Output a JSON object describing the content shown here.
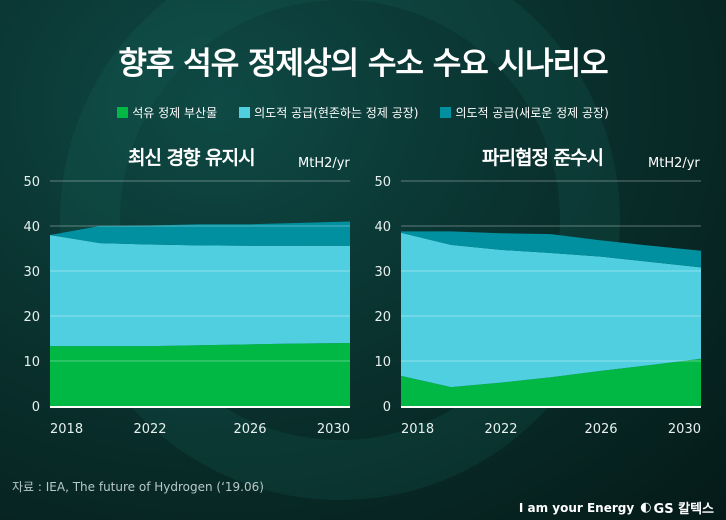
{
  "title": "향후 석유 정제상의 수소 수요 시나리오",
  "legend": [
    {
      "label": "석유 정제 부산물",
      "color": "#00b843"
    },
    {
      "label": "의도적 공급(현존하는 정제 공장)",
      "color": "#4fcfe0"
    },
    {
      "label": "의도적 공급(새로운 정제 공장)",
      "color": "#0090a0"
    }
  ],
  "source": "자료 : IEA, The future of Hydrogen (‘19.06)",
  "brand": {
    "slogan": "I am your Energy",
    "logo": "GS 칼텍스"
  },
  "chart_data": [
    {
      "type": "area",
      "stacked": true,
      "title": "최신 경향 유지시",
      "ylabel": "MtH2/yr",
      "x": [
        2018,
        2020,
        2022,
        2024,
        2026,
        2028,
        2030
      ],
      "xticks": [
        "2018",
        "2022",
        "2026",
        "2030"
      ],
      "yticks": [
        0,
        10,
        20,
        30,
        40,
        50
      ],
      "ylim": [
        0,
        50
      ],
      "grid": true,
      "series": [
        {
          "name": "석유 정제 부산물",
          "values": [
            13.3,
            13.3,
            13.3,
            13.5,
            13.7,
            13.9,
            14.0
          ]
        },
        {
          "name": "의도적 공급(현존하는 정제 공장)",
          "values": [
            24.7,
            22.9,
            22.6,
            22.2,
            21.9,
            21.7,
            21.6
          ]
        },
        {
          "name": "의도적 공급(새로운 정제 공장)",
          "values": [
            0,
            3.8,
            4.2,
            4.7,
            4.8,
            5.1,
            5.4
          ]
        }
      ]
    },
    {
      "type": "area",
      "stacked": true,
      "title": "파리협정 준수시",
      "ylabel": "MtH2/yr",
      "x": [
        2018,
        2020,
        2022,
        2024,
        2026,
        2028,
        2030
      ],
      "xticks": [
        "2018",
        "2022",
        "2026",
        "2030"
      ],
      "yticks": [
        0,
        10,
        20,
        30,
        40,
        50
      ],
      "ylim": [
        0,
        50
      ],
      "grid": true,
      "series": [
        {
          "name": "석유 정제 부산물",
          "values": [
            6.7,
            4.2,
            5.2,
            6.4,
            7.8,
            9.1,
            10.5
          ]
        },
        {
          "name": "의도적 공급(현존하는 정제 공장)",
          "values": [
            31.8,
            31.6,
            29.5,
            27.6,
            25.4,
            22.9,
            20.3
          ]
        },
        {
          "name": "의도적 공급(새로운 정제 공장)",
          "values": [
            0.3,
            3.0,
            3.7,
            4.2,
            3.6,
            3.6,
            3.7
          ]
        }
      ]
    }
  ]
}
